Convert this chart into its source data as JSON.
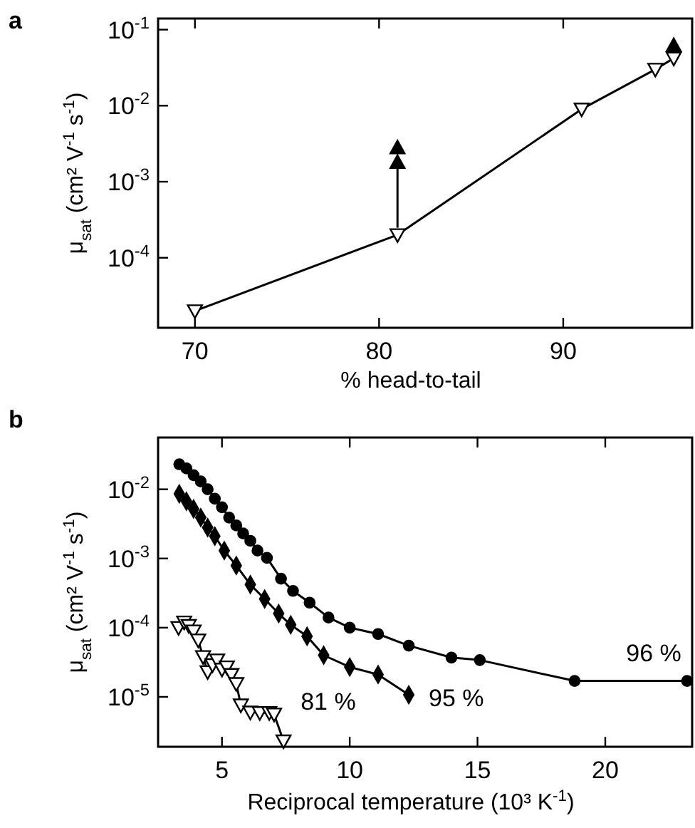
{
  "chart_data": [
    {
      "type": "line",
      "title": "a",
      "xlabel": "% head-to-tail",
      "ylabel": "μ$_{sat}$ (cm² V$^{-1}$ s$^{-1}$)",
      "log": "y",
      "xlim": [
        68,
        97
      ],
      "xticks": [
        70,
        80,
        90
      ],
      "ylim": [
        1.2e-05,
        0.14
      ],
      "yticks": [
        {
          "value": 0.1,
          "label": "10$^{-1}$"
        },
        {
          "value": 0.01,
          "label": "10$^{-2}$"
        },
        {
          "value": 0.001,
          "label": "10$^{-3}$"
        },
        {
          "value": 0.0001,
          "label": "10$^{-4}$"
        }
      ],
      "grid": false,
      "series": [
        {
          "color": "#000000",
          "marker": "triangle",
          "x": [
            70,
            81,
            91,
            95,
            96
          ],
          "values": [
            2e-05,
            0.0002,
            0.009,
            0.03,
            0.042
          ]
        },
        {
          "type": "scatter",
          "color": "#000000",
          "marker": "triangle",
          "x": [
            81,
            81,
            96
          ],
          "values": [
            0.0018,
            0.0028,
            0.062
          ]
        }
      ]
    },
    {
      "type": "line",
      "title": "b",
      "xlabel": "Reciprocal temperature (10³ K$^{-1}$)",
      "ylabel": "μ$_{sat}$ (cm² V$^{-1}$ s$^{-1}$)",
      "log": "y",
      "xlim": [
        2.5,
        23.4
      ],
      "xticks": [
        5,
        10,
        15,
        20
      ],
      "ylim": [
        1.9e-06,
        0.056
      ],
      "yticks": [
        {
          "value": 0.01,
          "label": "10$^{-2}$"
        },
        {
          "value": 0.001,
          "label": "10$^{-3}$"
        },
        {
          "value": 0.0001,
          "label": "10$^{-4}$"
        },
        {
          "value": 1e-05,
          "label": "10$^{-5}$"
        }
      ],
      "grid": false,
      "series": [
        {
          "name": "96 %",
          "color": "#000000",
          "marker": "circle",
          "x": [
            3.33,
            3.61,
            3.89,
            4.17,
            4.44,
            4.72,
            5.0,
            5.28,
            5.56,
            5.83,
            6.11,
            6.39,
            6.76,
            7.31,
            7.78,
            8.43,
            9.17,
            10.0,
            11.11,
            12.31,
            13.98,
            15.09,
            18.8,
            23.2
          ],
          "values": [
            0.023,
            0.02,
            0.016,
            0.013,
            0.01,
            0.0073,
            0.0055,
            0.0039,
            0.003,
            0.0023,
            0.0018,
            0.0013,
            0.00102,
            0.00051,
            0.00034,
            0.00023,
            0.00014,
            0.0001,
            8.1e-05,
            5.5e-05,
            3.7e-05,
            3.4e-05,
            1.7e-05,
            1.7e-05
          ]
        },
        {
          "name": "95 %",
          "color": "#000000",
          "marker": "diamond",
          "x": [
            3.33,
            3.61,
            3.89,
            4.17,
            4.44,
            4.72,
            5.09,
            5.56,
            6.11,
            6.67,
            7.22,
            7.69,
            8.33,
            8.98,
            10.0,
            11.11,
            12.31
          ],
          "values": [
            0.0086,
            0.0067,
            0.0052,
            0.0039,
            0.0028,
            0.0021,
            0.0013,
            0.00079,
            0.00042,
            0.00026,
            0.00016,
            0.00011,
            7.5e-05,
            4e-05,
            2.7e-05,
            2.1e-05,
            1.07e-05
          ]
        },
        {
          "name": "81 %",
          "color": "#000000",
          "marker": "triangle",
          "x": [
            3.3,
            3.52,
            3.7,
            3.89,
            4.07,
            4.26,
            4.44,
            4.63,
            4.81,
            5.0,
            5.19,
            5.37,
            5.56,
            5.74,
            6.11,
            6.48,
            6.85,
            7.04,
            7.41
          ],
          "values": [
            0.0001,
            0.00012,
            0.000107,
            8.9e-05,
            6.6e-05,
            3.8e-05,
            2.3e-05,
            2.9e-05,
            3.4e-05,
            2.5e-05,
            2.7e-05,
            2.1e-05,
            1.55e-05,
            7.6e-06,
            6e-06,
            5.9e-06,
            5.9e-06,
            5.6e-06,
            2.3e-06
          ]
        }
      ]
    }
  ]
}
